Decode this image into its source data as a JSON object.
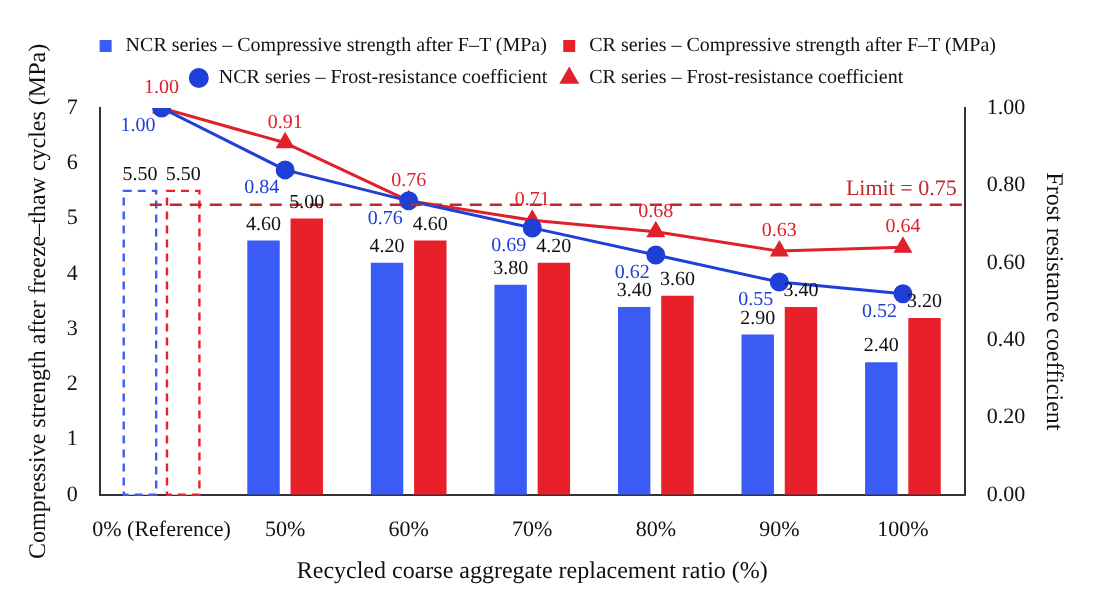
{
  "chart_data": {
    "type": "bar",
    "xlabel": "Recycled coarse aggregate replacement ratio (%)",
    "ylabel": "Compressive strength after freeze–thaw cycles (MPa)",
    "y2label": "Frost resistance coefficient",
    "categories": [
      "0% (Reference)",
      "50%",
      "60%",
      "70%",
      "80%",
      "90%",
      "100%"
    ],
    "series": [
      {
        "name": "NCR series – Compressive strength after F–T (MPa)",
        "color": "#3a5cf4",
        "colors": [
          "#ffffff",
          "#3a5cf4",
          "#3a5cf4",
          "#3a5cf4",
          "#3a5cf4",
          "#3a5cf4",
          "#3a5cf4"
        ],
        "values": [
          5.5,
          4.6,
          4.2,
          3.8,
          3.4,
          2.9,
          2.4
        ],
        "value_labels": [
          "5.50",
          "4.60",
          "4.20",
          "3.80",
          "3.40",
          "2.90",
          "2.40"
        ]
      },
      {
        "name": "CR series – Compressive strength after F–T (MPa)",
        "color": "#e8202a",
        "colors": [
          "#ffffff",
          "#e8202a",
          "#e8202a",
          "#e8202a",
          "#e8202a",
          "#e8202a",
          "#e8202a"
        ],
        "values": [
          5.5,
          5.0,
          4.6,
          4.2,
          3.6,
          3.4,
          3.2
        ],
        "value_labels": [
          "5.50",
          "5.00",
          "4.60",
          "4.20",
          "3.60",
          "3.40",
          "3.20"
        ]
      },
      {
        "name": "NCR series – Frost-resistance coefficient",
        "type": "line",
        "axis": "y2",
        "marker": "circle",
        "color": "#1f3fd6",
        "values": [
          1.0,
          0.84,
          0.76,
          0.69,
          0.62,
          0.55,
          0.52
        ],
        "value_labels": [
          "1.00",
          "0.84",
          "0.76",
          "0.69",
          "0.62",
          "0.55",
          "0.52"
        ]
      },
      {
        "name": "CR series – Frost-resistance coefficient",
        "type": "line",
        "axis": "y2",
        "marker": "triangle",
        "color": "#e0202a",
        "values": [
          1.0,
          0.91,
          0.76,
          0.71,
          0.68,
          0.63,
          0.64
        ],
        "value_labels": [
          "1.00",
          "0.91",
          "0.76",
          "0.71",
          "0.68",
          "0.63",
          "0.64"
        ]
      }
    ],
    "ylim": [
      0,
      7
    ],
    "yticks": [
      0,
      1,
      2,
      3,
      4,
      5,
      6,
      7
    ],
    "y2lim": [
      0,
      1
    ],
    "y2ticks": [
      {
        "value": 0,
        "label": "0.00"
      },
      {
        "value": 0.2,
        "label": "0.20"
      },
      {
        "value": 0.4,
        "label": "0.40"
      },
      {
        "value": 0.6,
        "label": "0.60"
      },
      {
        "value": 0.8,
        "label": "0.80"
      },
      {
        "value": 1,
        "label": "1.00"
      }
    ],
    "ref_lines": [
      {
        "axis": "y2",
        "value": 0.75,
        "label": "Limit = 0.75",
        "color": "#c0282a",
        "line_style": "dashed"
      }
    ],
    "legend": "top",
    "grid": false
  }
}
